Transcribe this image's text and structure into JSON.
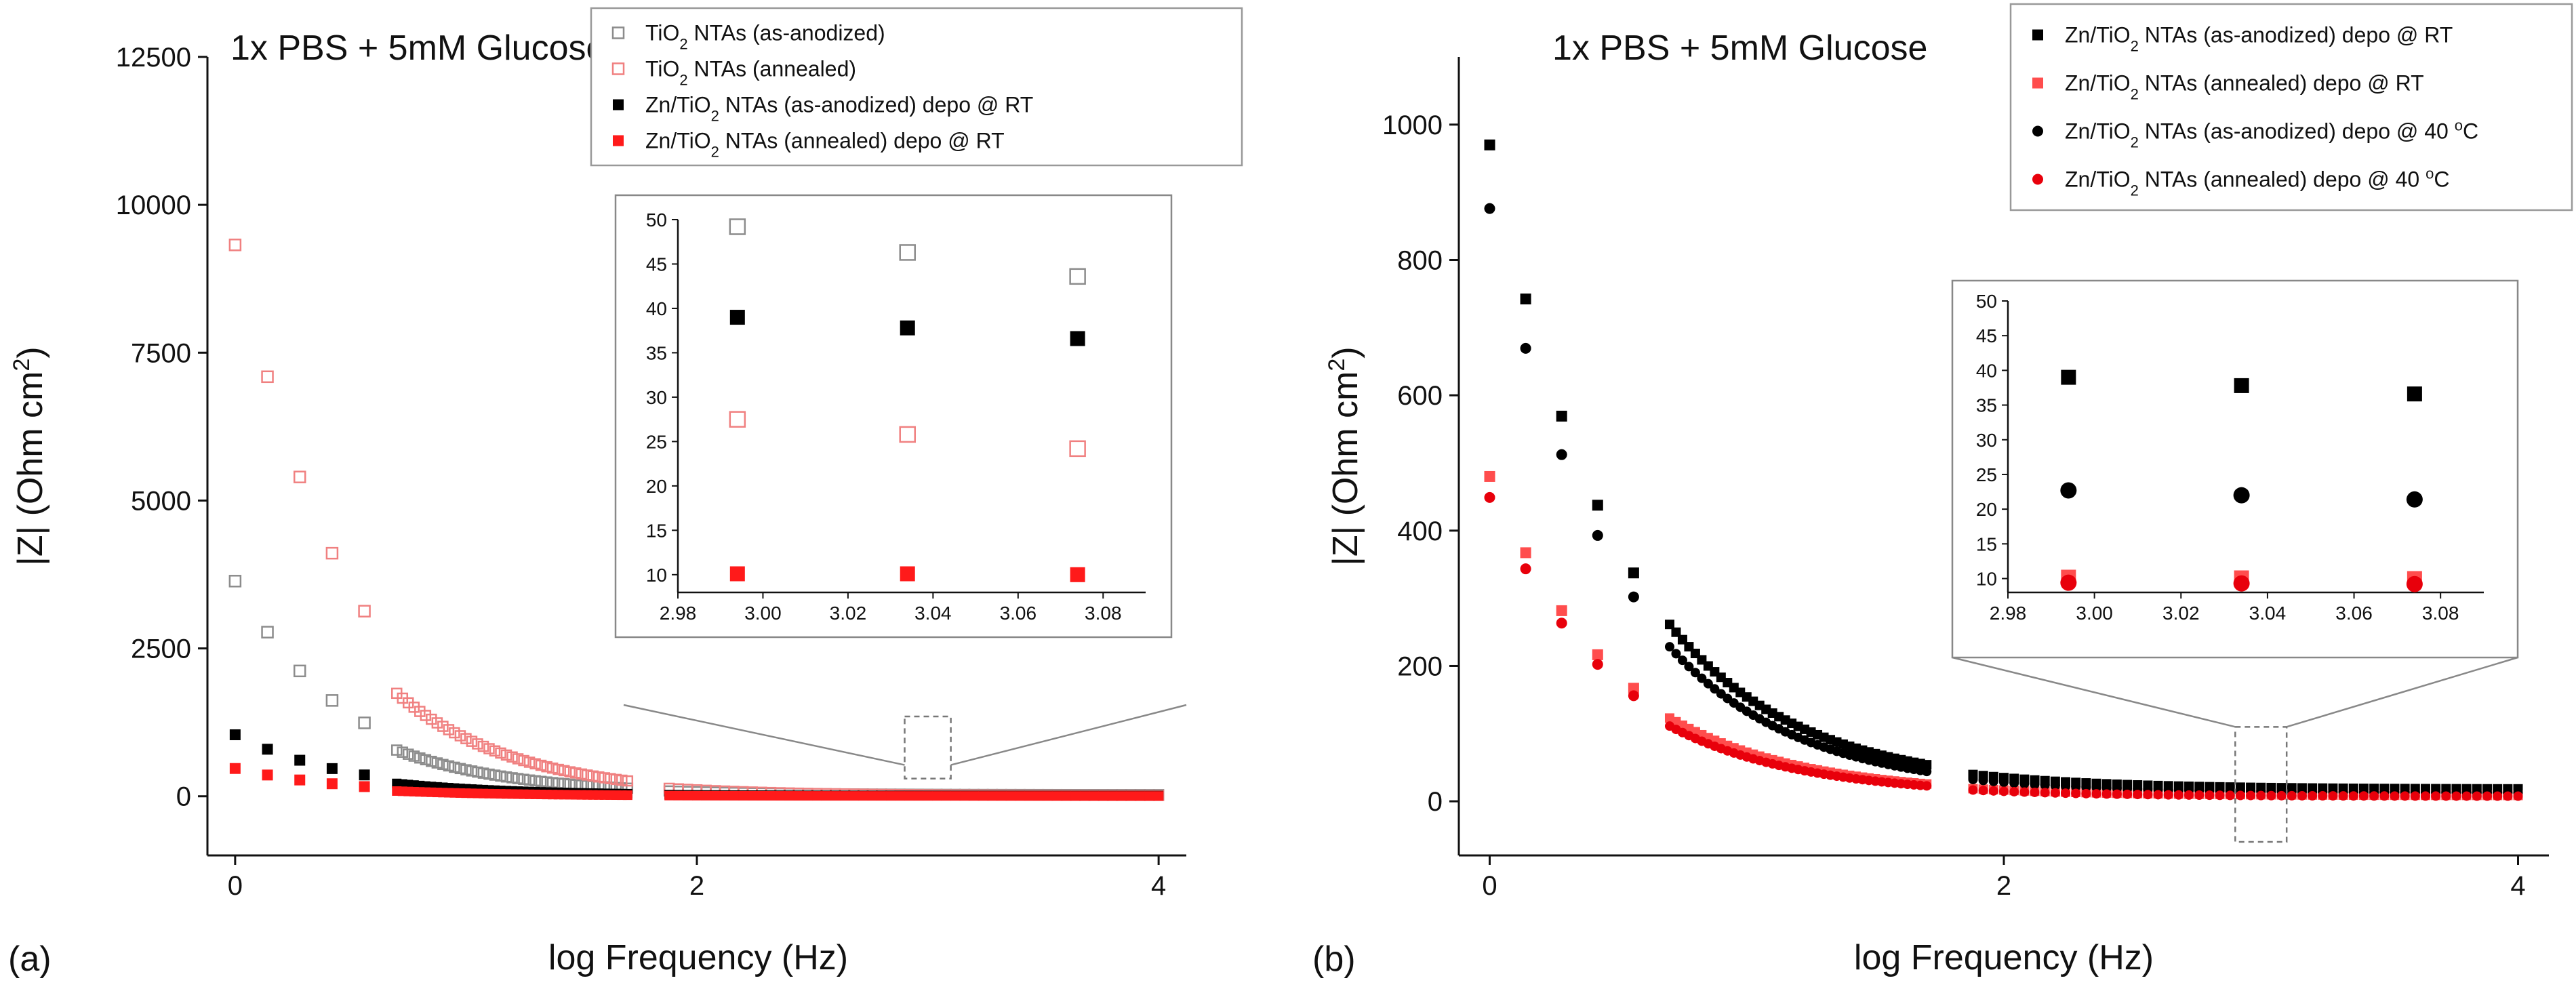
{
  "chart_data": [
    {
      "type": "scatter",
      "panel_label": "(a)",
      "title": "1x PBS + 5mM Glucose",
      "xlabel": "log Frequency (Hz)",
      "ylabel": {
        "main": "|Z| (Ohm cm",
        "sup": "2",
        "close": ")"
      },
      "xlim": [
        -0.12,
        4.12
      ],
      "ylim": [
        -1000,
        12500
      ],
      "xticks": [
        {
          "value": 0,
          "label": "0"
        },
        {
          "value": 2,
          "label": "2"
        },
        {
          "value": 4,
          "label": "4"
        }
      ],
      "yticks": [
        {
          "value": 0,
          "label": "0"
        },
        {
          "value": 2500,
          "label": "2500"
        },
        {
          "value": 5000,
          "label": "5000"
        },
        {
          "value": 7500,
          "label": "7500"
        },
        {
          "value": 10000,
          "label": "10000"
        },
        {
          "value": 12500,
          "label": "12500"
        }
      ],
      "legend_position": "top-right",
      "series": [
        {
          "id": "a-s1",
          "pre": "TiO",
          "sub": "2",
          "post": " NTAs (as-anodized)",
          "color": "#8c8c8c",
          "filled": false,
          "marker": "square",
          "z0": 3600,
          "n": 0.85,
          "zinf": 38,
          "breaks": [
            {
              "x": 0.7,
              "drop": 0.82
            },
            {
              "x": 1.88,
              "drop": 0.85
            }
          ]
        },
        {
          "id": "a-s2",
          "pre": "TiO",
          "sub": "2",
          "post": " NTAs (annealed)",
          "color": "#f08080",
          "filled": false,
          "marker": "square",
          "z0": 9300,
          "n": 0.85,
          "zinf": 22,
          "breaks": [
            {
              "x": 0.7,
              "drop": 0.73
            },
            {
              "x": 1.88,
              "drop": 0.72
            }
          ]
        },
        {
          "id": "a-s3",
          "pre": "Zn/TiO",
          "sub": "2",
          "post": " NTAs (as-anodized) depo @ RT",
          "color": "#000000",
          "filled": true,
          "marker": "square",
          "z0": 1020,
          "n": 0.85,
          "zinf": 20,
          "breaks": [
            {
              "x": 0.7,
              "drop": 0.78
            },
            {
              "x": 1.88,
              "drop": 0.8
            }
          ]
        },
        {
          "id": "a-s4",
          "pre": "Zn/TiO",
          "sub": "2",
          "post": " NTAs (annealed) depo @ RT",
          "color": "#ff1a1a",
          "filled": true,
          "marker": "square",
          "z0": 460,
          "n": 0.85,
          "zinf": 10,
          "breaks": [
            {
              "x": 0.7,
              "drop": 0.7
            },
            {
              "x": 1.88,
              "drop": 0.8
            }
          ]
        }
      ],
      "inset": {
        "xlim": [
          2.98,
          3.09
        ],
        "ylim": [
          8,
          50
        ],
        "xticks": [
          {
            "value": 2.98,
            "label": "2.98"
          },
          {
            "value": 3.0,
            "label": "3.00"
          },
          {
            "value": 3.02,
            "label": "3.02"
          },
          {
            "value": 3.04,
            "label": "3.04"
          },
          {
            "value": 3.06,
            "label": "3.06"
          },
          {
            "value": 3.08,
            "label": "3.08"
          }
        ],
        "yticks": [
          {
            "value": 10,
            "label": "10"
          },
          {
            "value": 15,
            "label": "15"
          },
          {
            "value": 20,
            "label": "20"
          },
          {
            "value": 25,
            "label": "25"
          },
          {
            "value": 30,
            "label": "30"
          },
          {
            "value": 35,
            "label": "35"
          },
          {
            "value": 40,
            "label": "40"
          },
          {
            "value": 45,
            "label": "45"
          },
          {
            "value": 50,
            "label": "50"
          }
        ],
        "x": [
          2.994,
          3.034,
          3.074
        ],
        "series_values": [
          [
            49.2,
            46.3,
            43.6
          ],
          [
            27.5,
            25.8,
            24.2
          ],
          [
            39.0,
            37.8,
            36.6
          ],
          [
            10.1,
            10.1,
            10.0
          ]
        ]
      },
      "zoom_box": {
        "x": [
          2.9,
          3.1
        ],
        "y": [
          300,
          1350
        ]
      }
    },
    {
      "type": "scatter",
      "panel_label": "(b)",
      "title": "1x PBS + 5mM Glucose",
      "xlabel": "log Frequency (Hz)",
      "ylabel": {
        "main": "|Z| (Ohm cm",
        "sup": "2",
        "close": ")"
      },
      "xlim": [
        -0.12,
        4.12
      ],
      "ylim": [
        -80,
        1100
      ],
      "xticks": [
        {
          "value": 0,
          "label": "0"
        },
        {
          "value": 2,
          "label": "2"
        },
        {
          "value": 4,
          "label": "4"
        }
      ],
      "yticks": [
        {
          "value": 0,
          "label": "0"
        },
        {
          "value": 200,
          "label": "200"
        },
        {
          "value": 400,
          "label": "400"
        },
        {
          "value": 600,
          "label": "600"
        },
        {
          "value": 800,
          "label": "800"
        },
        {
          "value": 1000,
          "label": "1000"
        }
      ],
      "legend_position": "top-right",
      "series": [
        {
          "id": "b-s1",
          "pre": "Zn/TiO",
          "sub": "2",
          "post": " NTAs (as-anodized) depo @ RT",
          "color": "#000000",
          "filled": true,
          "marker": "square",
          "z0": 950,
          "n": 0.85,
          "zinf": 20,
          "breaks": [
            {
              "x": 0.7,
              "drop": 1.0
            },
            {
              "x": 1.88,
              "drop": 0.9
            }
          ]
        },
        {
          "id": "b-s2",
          "pre": "Zn/TiO",
          "sub": "2",
          "post": " NTAs (annealed) depo @ RT",
          "color": "#ff4d4d",
          "filled": true,
          "marker": "square",
          "z0": 470,
          "n": 0.85,
          "zinf": 10,
          "breaks": [
            {
              "x": 0.7,
              "drop": 0.95
            },
            {
              "x": 1.88,
              "drop": 0.9
            }
          ]
        },
        {
          "id": "b-s3",
          "pre": "Zn/TiO",
          "sub": "2",
          "post": " NTAs (as-anodized) depo @ 40 ",
          "supPost": "o",
          "post2": "C",
          "color": "#000000",
          "filled": true,
          "marker": "circle",
          "z0": 862,
          "n": 0.85,
          "zinf": 14,
          "breaks": [
            {
              "x": 0.7,
              "drop": 0.98
            },
            {
              "x": 1.88,
              "drop": 0.92
            }
          ]
        },
        {
          "id": "b-s4",
          "pre": "Zn/TiO",
          "sub": "2",
          "post": " NTAs (annealed) depo @ 40 ",
          "supPost": "o",
          "post2": "C",
          "color": "#e8000b",
          "filled": true,
          "marker": "circle",
          "z0": 440,
          "n": 0.85,
          "zinf": 9,
          "breaks": [
            {
              "x": 0.7,
              "drop": 0.92
            },
            {
              "x": 1.88,
              "drop": 0.9
            }
          ]
        }
      ],
      "inset": {
        "xlim": [
          2.98,
          3.09
        ],
        "ylim": [
          8,
          50
        ],
        "xticks": [
          {
            "value": 2.98,
            "label": "2.98"
          },
          {
            "value": 3.0,
            "label": "3.00"
          },
          {
            "value": 3.02,
            "label": "3.02"
          },
          {
            "value": 3.04,
            "label": "3.04"
          },
          {
            "value": 3.06,
            "label": "3.06"
          },
          {
            "value": 3.08,
            "label": "3.08"
          }
        ],
        "yticks": [
          {
            "value": 10,
            "label": "10"
          },
          {
            "value": 15,
            "label": "15"
          },
          {
            "value": 20,
            "label": "20"
          },
          {
            "value": 25,
            "label": "25"
          },
          {
            "value": 30,
            "label": "30"
          },
          {
            "value": 35,
            "label": "35"
          },
          {
            "value": 40,
            "label": "40"
          },
          {
            "value": 45,
            "label": "45"
          },
          {
            "value": 50,
            "label": "50"
          }
        ],
        "x": [
          2.994,
          3.034,
          3.074
        ],
        "series_values": [
          [
            39.0,
            37.8,
            36.6
          ],
          [
            10.2,
            10.1,
            10.0
          ],
          [
            22.7,
            22.0,
            21.4
          ],
          [
            9.4,
            9.3,
            9.2
          ]
        ]
      },
      "zoom_box": {
        "x": [
          2.9,
          3.1
        ],
        "y": [
          -60,
          110
        ]
      }
    }
  ]
}
